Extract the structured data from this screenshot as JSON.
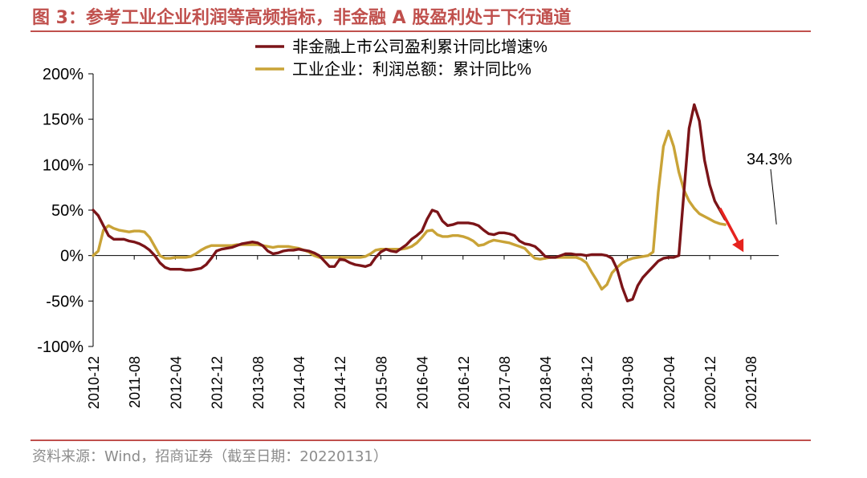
{
  "header": {
    "title": "图 3：参考工业企业利润等高频指标，非金融 A 股盈利处于下行通道"
  },
  "footer": {
    "source": "资料来源：Wind，招商证券（截至日期：20220131）"
  },
  "colors": {
    "accent": "#c0504d",
    "series1": "#7b1418",
    "series2": "#c9a337",
    "arrow": "#e6231e",
    "axis": "#000000",
    "source": "#8c8c8c"
  },
  "chart_data": {
    "type": "line",
    "title": "",
    "xlabel": "",
    "ylabel": "",
    "ylim": [
      -100,
      200
    ],
    "yticks": [
      -100,
      -50,
      0,
      50,
      100,
      150,
      200
    ],
    "ytick_labels": [
      "-100%",
      "-50%",
      "0%",
      "50%",
      "100%",
      "150%",
      "200%"
    ],
    "xticks": [
      "2010-12",
      "2011-08",
      "2012-04",
      "2012-12",
      "2013-08",
      "2014-04",
      "2014-12",
      "2015-08",
      "2016-04",
      "2016-12",
      "2017-08",
      "2018-04",
      "2018-12",
      "2019-08",
      "2020-04",
      "2020-12",
      "2021-08"
    ],
    "grid": false,
    "legend_position": "top-center",
    "annotation": {
      "text": "34.3%",
      "x": "2022-01",
      "y": 34.3
    },
    "trend_arrow": {
      "from": {
        "x": "2021-02",
        "y": 52
      },
      "to": {
        "x": "2021-06",
        "y": 10
      }
    },
    "series": [
      {
        "name": "非金融上市公司盈利累计同比增速%",
        "points": [
          [
            "2010-12",
            50
          ],
          [
            "2011-01",
            44
          ],
          [
            "2011-02",
            33
          ],
          [
            "2011-03",
            22
          ],
          [
            "2011-04",
            18
          ],
          [
            "2011-05",
            18
          ],
          [
            "2011-06",
            18
          ],
          [
            "2011-07",
            16
          ],
          [
            "2011-08",
            15
          ],
          [
            "2011-09",
            13
          ],
          [
            "2011-10",
            10
          ],
          [
            "2011-11",
            6
          ],
          [
            "2011-12",
            0
          ],
          [
            "2012-01",
            -8
          ],
          [
            "2012-02",
            -13
          ],
          [
            "2012-03",
            -15
          ],
          [
            "2012-04",
            -15
          ],
          [
            "2012-05",
            -15
          ],
          [
            "2012-06",
            -16
          ],
          [
            "2012-07",
            -16
          ],
          [
            "2012-08",
            -15
          ],
          [
            "2012-09",
            -14
          ],
          [
            "2012-10",
            -10
          ],
          [
            "2012-11",
            -3
          ],
          [
            "2012-12",
            5
          ],
          [
            "2013-01",
            7
          ],
          [
            "2013-02",
            8
          ],
          [
            "2013-03",
            9
          ],
          [
            "2013-04",
            11
          ],
          [
            "2013-05",
            13
          ],
          [
            "2013-06",
            14
          ],
          [
            "2013-07",
            15
          ],
          [
            "2013-08",
            14
          ],
          [
            "2013-09",
            11
          ],
          [
            "2013-10",
            5
          ],
          [
            "2013-11",
            2
          ],
          [
            "2013-12",
            3
          ],
          [
            "2014-01",
            5
          ],
          [
            "2014-02",
            6
          ],
          [
            "2014-03",
            6
          ],
          [
            "2014-04",
            7
          ],
          [
            "2014-05",
            6
          ],
          [
            "2014-06",
            5
          ],
          [
            "2014-07",
            3
          ],
          [
            "2014-08",
            0
          ],
          [
            "2014-09",
            -6
          ],
          [
            "2014-10",
            -12
          ],
          [
            "2014-11",
            -12
          ],
          [
            "2014-12",
            -4
          ],
          [
            "2015-01",
            -5
          ],
          [
            "2015-02",
            -8
          ],
          [
            "2015-03",
            -10
          ],
          [
            "2015-04",
            -11
          ],
          [
            "2015-05",
            -12
          ],
          [
            "2015-06",
            -10
          ],
          [
            "2015-07",
            -2
          ],
          [
            "2015-08",
            4
          ],
          [
            "2015-09",
            7
          ],
          [
            "2015-10",
            5
          ],
          [
            "2015-11",
            4
          ],
          [
            "2015-12",
            8
          ],
          [
            "2016-01",
            12
          ],
          [
            "2016-02",
            18
          ],
          [
            "2016-03",
            22
          ],
          [
            "2016-04",
            27
          ],
          [
            "2016-05",
            40
          ],
          [
            "2016-06",
            50
          ],
          [
            "2016-07",
            48
          ],
          [
            "2016-08",
            38
          ],
          [
            "2016-09",
            33
          ],
          [
            "2016-10",
            34
          ],
          [
            "2016-11",
            36
          ],
          [
            "2016-12",
            36
          ],
          [
            "2017-01",
            36
          ],
          [
            "2017-02",
            35
          ],
          [
            "2017-03",
            33
          ],
          [
            "2017-04",
            28
          ],
          [
            "2017-05",
            24
          ],
          [
            "2017-06",
            23
          ],
          [
            "2017-07",
            25
          ],
          [
            "2017-08",
            25
          ],
          [
            "2017-09",
            24
          ],
          [
            "2017-10",
            22
          ],
          [
            "2017-11",
            16
          ],
          [
            "2017-12",
            13
          ],
          [
            "2018-01",
            12
          ],
          [
            "2018-02",
            10
          ],
          [
            "2018-03",
            5
          ],
          [
            "2018-04",
            -1
          ],
          [
            "2018-05",
            -2
          ],
          [
            "2018-06",
            -2
          ],
          [
            "2018-07",
            0
          ],
          [
            "2018-08",
            2
          ],
          [
            "2018-09",
            2
          ],
          [
            "2018-10",
            1
          ],
          [
            "2018-11",
            1
          ],
          [
            "2018-12",
            0
          ],
          [
            "2019-01",
            1
          ],
          [
            "2019-02",
            1
          ],
          [
            "2019-03",
            1
          ],
          [
            "2019-04",
            0
          ],
          [
            "2019-05",
            -3
          ],
          [
            "2019-06",
            -15
          ],
          [
            "2019-07",
            -35
          ],
          [
            "2019-08",
            -50
          ],
          [
            "2019-09",
            -48
          ],
          [
            "2019-10",
            -33
          ],
          [
            "2019-11",
            -24
          ],
          [
            "2019-12",
            -18
          ],
          [
            "2020-01",
            -12
          ],
          [
            "2020-02",
            -6
          ],
          [
            "2020-03",
            -3
          ],
          [
            "2020-04",
            -2
          ],
          [
            "2020-05",
            -2
          ],
          [
            "2020-06",
            0
          ],
          [
            "2020-07",
            70
          ],
          [
            "2020-08",
            140
          ],
          [
            "2020-09",
            166
          ],
          [
            "2020-10",
            148
          ],
          [
            "2020-11",
            105
          ],
          [
            "2020-12",
            78
          ],
          [
            "2021-01",
            60
          ],
          [
            "2021-02",
            50
          ],
          [
            "2021-03",
            40
          ]
        ]
      },
      {
        "name": "工业企业：利润总额：累计同比%",
        "points": [
          [
            "2010-12",
            0
          ],
          [
            "2011-01",
            5
          ],
          [
            "2011-02",
            28
          ],
          [
            "2011-03",
            33
          ],
          [
            "2011-04",
            30
          ],
          [
            "2011-05",
            28
          ],
          [
            "2011-06",
            27
          ],
          [
            "2011-07",
            26
          ],
          [
            "2011-08",
            27
          ],
          [
            "2011-09",
            27
          ],
          [
            "2011-10",
            26
          ],
          [
            "2011-11",
            20
          ],
          [
            "2011-12",
            10
          ],
          [
            "2012-01",
            0
          ],
          [
            "2012-02",
            -3
          ],
          [
            "2012-03",
            -3
          ],
          [
            "2012-04",
            -2
          ],
          [
            "2012-05",
            -2
          ],
          [
            "2012-06",
            -2
          ],
          [
            "2012-07",
            -1
          ],
          [
            "2012-08",
            2
          ],
          [
            "2012-09",
            6
          ],
          [
            "2012-10",
            9
          ],
          [
            "2012-11",
            11
          ],
          [
            "2012-12",
            11
          ],
          [
            "2013-01",
            11
          ],
          [
            "2013-02",
            11
          ],
          [
            "2013-03",
            11
          ],
          [
            "2013-04",
            12
          ],
          [
            "2013-05",
            12
          ],
          [
            "2013-06",
            12
          ],
          [
            "2013-07",
            12
          ],
          [
            "2013-08",
            12
          ],
          [
            "2013-09",
            11
          ],
          [
            "2013-10",
            10
          ],
          [
            "2013-11",
            9
          ],
          [
            "2013-12",
            10
          ],
          [
            "2014-01",
            10
          ],
          [
            "2014-02",
            10
          ],
          [
            "2014-03",
            9
          ],
          [
            "2014-04",
            8
          ],
          [
            "2014-05",
            6
          ],
          [
            "2014-06",
            4
          ],
          [
            "2014-07",
            0
          ],
          [
            "2014-08",
            -2
          ],
          [
            "2014-09",
            -2
          ],
          [
            "2014-10",
            -2
          ],
          [
            "2014-11",
            -2
          ],
          [
            "2014-12",
            -2
          ],
          [
            "2015-01",
            -2
          ],
          [
            "2015-02",
            -2
          ],
          [
            "2015-03",
            -2
          ],
          [
            "2015-04",
            -2
          ],
          [
            "2015-05",
            -1
          ],
          [
            "2015-06",
            2
          ],
          [
            "2015-07",
            6
          ],
          [
            "2015-08",
            7
          ],
          [
            "2015-09",
            7
          ],
          [
            "2015-10",
            7
          ],
          [
            "2015-11",
            7
          ],
          [
            "2015-12",
            7
          ],
          [
            "2016-01",
            8
          ],
          [
            "2016-02",
            10
          ],
          [
            "2016-03",
            14
          ],
          [
            "2016-04",
            20
          ],
          [
            "2016-05",
            27
          ],
          [
            "2016-06",
            28
          ],
          [
            "2016-07",
            23
          ],
          [
            "2016-08",
            21
          ],
          [
            "2016-09",
            21
          ],
          [
            "2016-10",
            22
          ],
          [
            "2016-11",
            22
          ],
          [
            "2016-12",
            21
          ],
          [
            "2017-01",
            19
          ],
          [
            "2017-02",
            16
          ],
          [
            "2017-03",
            11
          ],
          [
            "2017-04",
            12
          ],
          [
            "2017-05",
            15
          ],
          [
            "2017-06",
            17
          ],
          [
            "2017-07",
            16
          ],
          [
            "2017-08",
            15
          ],
          [
            "2017-09",
            14
          ],
          [
            "2017-10",
            12
          ],
          [
            "2017-11",
            10
          ],
          [
            "2017-12",
            8
          ],
          [
            "2018-01",
            2
          ],
          [
            "2018-02",
            -3
          ],
          [
            "2018-03",
            -4
          ],
          [
            "2018-04",
            -3
          ],
          [
            "2018-05",
            -2
          ],
          [
            "2018-06",
            -2
          ],
          [
            "2018-07",
            -2
          ],
          [
            "2018-08",
            -2
          ],
          [
            "2018-09",
            -2
          ],
          [
            "2018-10",
            -2
          ],
          [
            "2018-11",
            -4
          ],
          [
            "2018-12",
            -8
          ],
          [
            "2019-01",
            -18
          ],
          [
            "2019-02",
            -27
          ],
          [
            "2019-03",
            -37
          ],
          [
            "2019-04",
            -32
          ],
          [
            "2019-05",
            -19
          ],
          [
            "2019-06",
            -13
          ],
          [
            "2019-07",
            -8
          ],
          [
            "2019-08",
            -5
          ],
          [
            "2019-09",
            -3
          ],
          [
            "2019-10",
            -2
          ],
          [
            "2019-11",
            -1
          ],
          [
            "2019-12",
            0
          ],
          [
            "2020-01",
            4
          ],
          [
            "2020-02",
            70
          ],
          [
            "2020-03",
            120
          ],
          [
            "2020-04",
            137
          ],
          [
            "2020-05",
            120
          ],
          [
            "2020-06",
            92
          ],
          [
            "2020-07",
            72
          ],
          [
            "2020-08",
            60
          ],
          [
            "2020-09",
            52
          ],
          [
            "2020-10",
            46
          ],
          [
            "2020-11",
            43
          ],
          [
            "2020-12",
            40
          ],
          [
            "2021-01",
            37
          ],
          [
            "2021-02",
            35
          ],
          [
            "2021-03",
            34
          ]
        ]
      }
    ]
  }
}
